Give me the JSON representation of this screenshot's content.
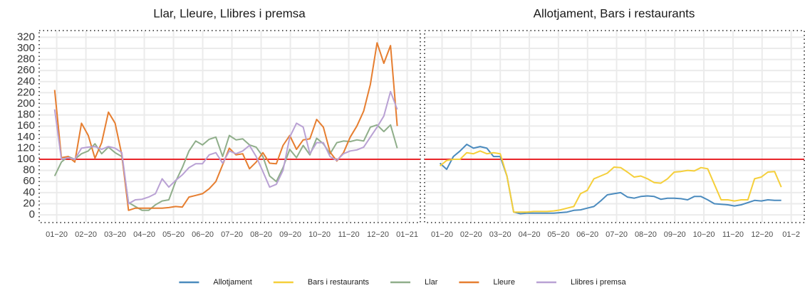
{
  "chart_data": [
    {
      "type": "line",
      "title": "Llar, Lleure, Llibres i premsa",
      "x": [
        0.93,
        1.16,
        1.39,
        1.62,
        1.85,
        2.08,
        2.31,
        2.54,
        2.77,
        3.0,
        3.23,
        3.46,
        3.69,
        3.92,
        4.15,
        4.38,
        4.61,
        4.84,
        5.07,
        5.3,
        5.53,
        5.76,
        5.99,
        6.22,
        6.45,
        6.68,
        6.91,
        7.14,
        7.37,
        7.6,
        7.83,
        8.06,
        8.29,
        8.52,
        8.75,
        8.98,
        9.21,
        9.44,
        9.67,
        9.9,
        10.13,
        10.36,
        10.59,
        10.82,
        11.05,
        11.28,
        11.51,
        11.74,
        11.97,
        12.2,
        12.43,
        12.66
      ],
      "series": [
        {
          "name": "Llar",
          "color": "#8fae8a",
          "values": [
            70,
            95,
            105,
            100,
            110,
            115,
            128,
            110,
            122,
            112,
            105,
            22,
            15,
            8,
            8,
            18,
            25,
            27,
            60,
            85,
            115,
            133,
            126,
            136,
            140,
            105,
            143,
            135,
            137,
            126,
            122,
            105,
            70,
            60,
            85,
            118,
            103,
            125,
            108,
            138,
            128,
            110,
            130,
            133,
            132,
            135,
            133,
            158,
            162,
            150,
            162,
            120
          ]
        },
        {
          "name": "Lleure",
          "color": "#e67e30",
          "values": [
            225,
            103,
            105,
            95,
            165,
            143,
            102,
            130,
            185,
            165,
            108,
            8,
            12,
            12,
            12,
            12,
            12,
            13,
            15,
            14,
            32,
            35,
            38,
            47,
            60,
            90,
            120,
            108,
            110,
            83,
            95,
            112,
            93,
            92,
            125,
            143,
            118,
            135,
            137,
            172,
            158,
            113,
            97,
            112,
            140,
            160,
            187,
            235,
            310,
            273,
            305,
            160
          ]
        },
        {
          "name": "Llibres i premsa",
          "color": "#b9a1d4",
          "values": [
            190,
            100,
            103,
            100,
            120,
            122,
            123,
            118,
            123,
            120,
            112,
            20,
            27,
            28,
            32,
            38,
            65,
            50,
            62,
            72,
            85,
            92,
            92,
            108,
            112,
            93,
            115,
            110,
            115,
            125,
            105,
            78,
            50,
            55,
            80,
            140,
            165,
            158,
            110,
            130,
            130,
            105,
            98,
            110,
            115,
            117,
            122,
            140,
            158,
            178,
            222,
            190
          ]
        }
      ],
      "reference_line": 100,
      "reference_color": "#e8262a",
      "xlim": [
        0.4,
        13.45
      ],
      "xticks": [
        {
          "value": 1,
          "label": "01−20"
        },
        {
          "value": 2,
          "label": "02−20"
        },
        {
          "value": 3,
          "label": "03−20"
        },
        {
          "value": 4,
          "label": "04−20"
        },
        {
          "value": 5,
          "label": "05−20"
        },
        {
          "value": 6,
          "label": "06−20"
        },
        {
          "value": 7,
          "label": "07−20"
        },
        {
          "value": 8,
          "label": "08−20"
        },
        {
          "value": 9,
          "label": "09−20"
        },
        {
          "value": 10,
          "label": "10−20"
        },
        {
          "value": 11,
          "label": "11−20"
        },
        {
          "value": 12,
          "label": "12−20"
        },
        {
          "value": 13,
          "label": "01−21"
        }
      ],
      "ylim": [
        -14,
        332
      ],
      "yticks": [
        0,
        20,
        40,
        60,
        80,
        100,
        120,
        140,
        160,
        180,
        200,
        220,
        240,
        260,
        280,
        300,
        320
      ],
      "grid": true
    },
    {
      "type": "line",
      "title": "Allotjament, Bars i restaurants",
      "x": [
        0.93,
        1.16,
        1.39,
        1.62,
        1.85,
        2.08,
        2.31,
        2.54,
        2.77,
        3.0,
        3.23,
        3.46,
        3.69,
        3.92,
        4.15,
        4.38,
        4.61,
        4.84,
        5.07,
        5.3,
        5.53,
        5.76,
        5.99,
        6.22,
        6.45,
        6.68,
        6.91,
        7.14,
        7.37,
        7.6,
        7.83,
        8.06,
        8.29,
        8.52,
        8.75,
        8.98,
        9.21,
        9.44,
        9.67,
        9.9,
        10.13,
        10.36,
        10.59,
        10.82,
        11.05,
        11.28,
        11.51,
        11.74,
        11.97,
        12.2,
        12.43,
        12.66
      ],
      "series": [
        {
          "name": "Allotjament",
          "color": "#4b8bbe",
          "values": [
            93,
            82,
            105,
            115,
            127,
            120,
            123,
            120,
            105,
            105,
            70,
            5,
            2,
            3,
            3,
            3,
            3,
            3,
            4,
            5,
            8,
            9,
            12,
            15,
            25,
            36,
            38,
            40,
            32,
            30,
            33,
            34,
            33,
            28,
            30,
            30,
            29,
            27,
            33,
            33,
            27,
            20,
            19,
            18,
            16,
            18,
            22,
            26,
            25,
            27,
            26,
            26
          ]
        },
        {
          "name": "Bars i restaurants",
          "color": "#f5cf3a",
          "values": [
            88,
            98,
            100,
            100,
            112,
            110,
            115,
            110,
            112,
            110,
            70,
            5,
            5,
            5,
            6,
            6,
            6,
            7,
            9,
            12,
            15,
            38,
            44,
            65,
            70,
            75,
            86,
            85,
            77,
            68,
            70,
            65,
            58,
            57,
            65,
            77,
            78,
            80,
            79,
            85,
            83,
            55,
            27,
            27,
            25,
            27,
            27,
            65,
            68,
            77,
            78,
            50
          ]
        }
      ],
      "reference_line": 100,
      "reference_color": "#e8262a",
      "xlim": [
        0.4,
        13.45
      ],
      "xticks": [
        {
          "value": 1,
          "label": "01−20"
        },
        {
          "value": 2,
          "label": "02−20"
        },
        {
          "value": 3,
          "label": "03−20"
        },
        {
          "value": 4,
          "label": "04−20"
        },
        {
          "value": 5,
          "label": "05−20"
        },
        {
          "value": 6,
          "label": "06−20"
        },
        {
          "value": 7,
          "label": "07−20"
        },
        {
          "value": 8,
          "label": "08−20"
        },
        {
          "value": 9,
          "label": "09−20"
        },
        {
          "value": 10,
          "label": "10−20"
        },
        {
          "value": 11,
          "label": "11−20"
        },
        {
          "value": 12,
          "label": "12−20"
        },
        {
          "value": 13,
          "label": "01−2"
        }
      ],
      "ylim": [
        -14,
        332
      ],
      "yticks": [
        0,
        20,
        40,
        60,
        80,
        100,
        120,
        140,
        160,
        180,
        200,
        220,
        240,
        260,
        280,
        300,
        320
      ],
      "grid": true
    }
  ]
}
